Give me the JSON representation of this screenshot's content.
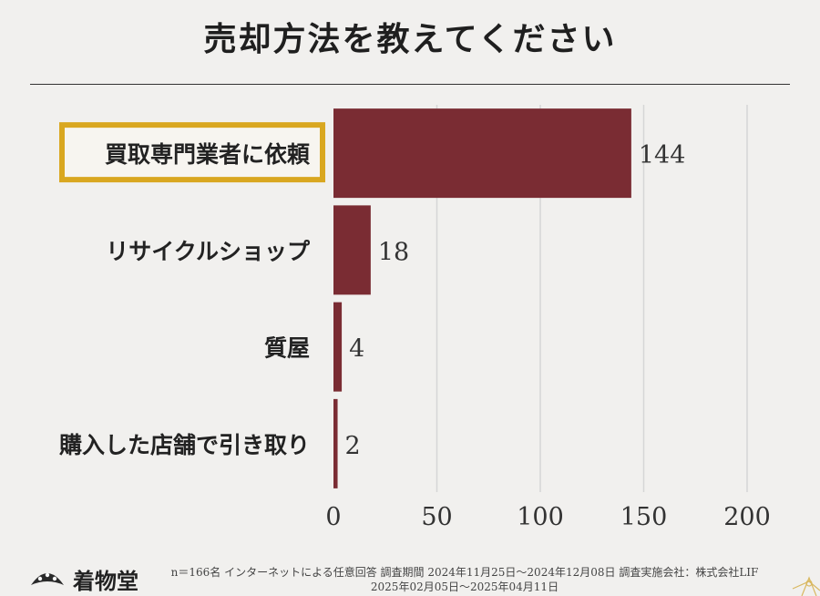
{
  "header": {
    "title": "売却方法を教えてください"
  },
  "chart_data": {
    "type": "bar",
    "orientation": "horizontal",
    "title": "売却方法を教えてください",
    "categories": [
      "買取専門業者に依頼",
      "リサイクルショップ",
      "質屋",
      "購入した店舗で引き取り"
    ],
    "values": [
      144,
      18,
      4,
      2
    ],
    "value_labels": [
      "144",
      "18",
      "4",
      "2"
    ],
    "xlim": [
      0,
      200
    ],
    "xticks": [
      "0",
      "50",
      "100",
      "150",
      "200"
    ],
    "xtick_values": [
      0,
      50,
      100,
      150,
      200
    ],
    "highlight_index": 0,
    "grid": true,
    "colors": {
      "bar": "#7a2c33",
      "highlight": "#d9a720",
      "grid": "#d6d6d6"
    }
  },
  "footer": {
    "brand": "着物堂",
    "note_line1": "n＝166名 インターネットによる任意回答 調査期間 2024年11月25日〜2024年12月08日 調査実施会社：株式会社LIF",
    "note_line2": "2025年02月05日〜2025年04月11日"
  }
}
